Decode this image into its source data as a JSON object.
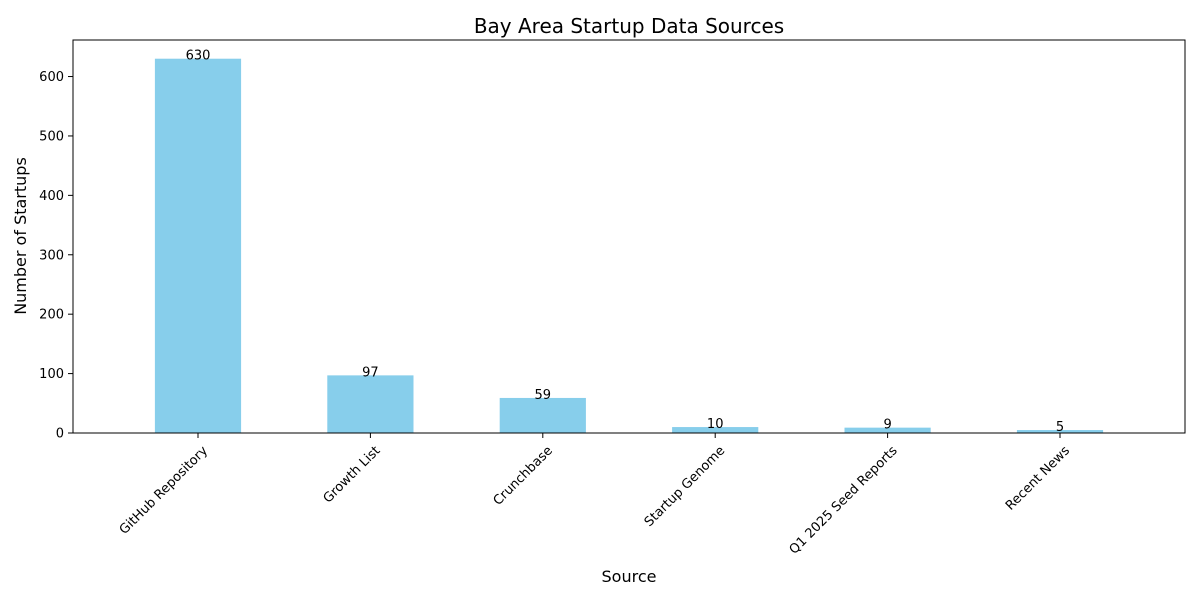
{
  "chart_data": {
    "type": "bar",
    "title": "Bay Area Startup Data Sources",
    "xlabel": "Source",
    "ylabel": "Number of Startups",
    "categories": [
      "GitHub Repository",
      "Growth List",
      "Crunchbase",
      "Startup Genome",
      "Q1 2025 Seed Reports",
      "Recent News"
    ],
    "values": [
      630,
      97,
      59,
      10,
      9,
      5
    ],
    "data_labels": [
      "630",
      "97",
      "59",
      "10",
      "9",
      "5"
    ],
    "ylim": [
      0,
      661.5
    ],
    "yticks": [
      0,
      100,
      200,
      300,
      400,
      500,
      600
    ],
    "ytick_labels": [
      "0",
      "100",
      "200",
      "300",
      "400",
      "500",
      "600"
    ],
    "grid": false,
    "legend": "none",
    "bar_color": "#87CEEB",
    "tick_rotation_deg": -45
  }
}
